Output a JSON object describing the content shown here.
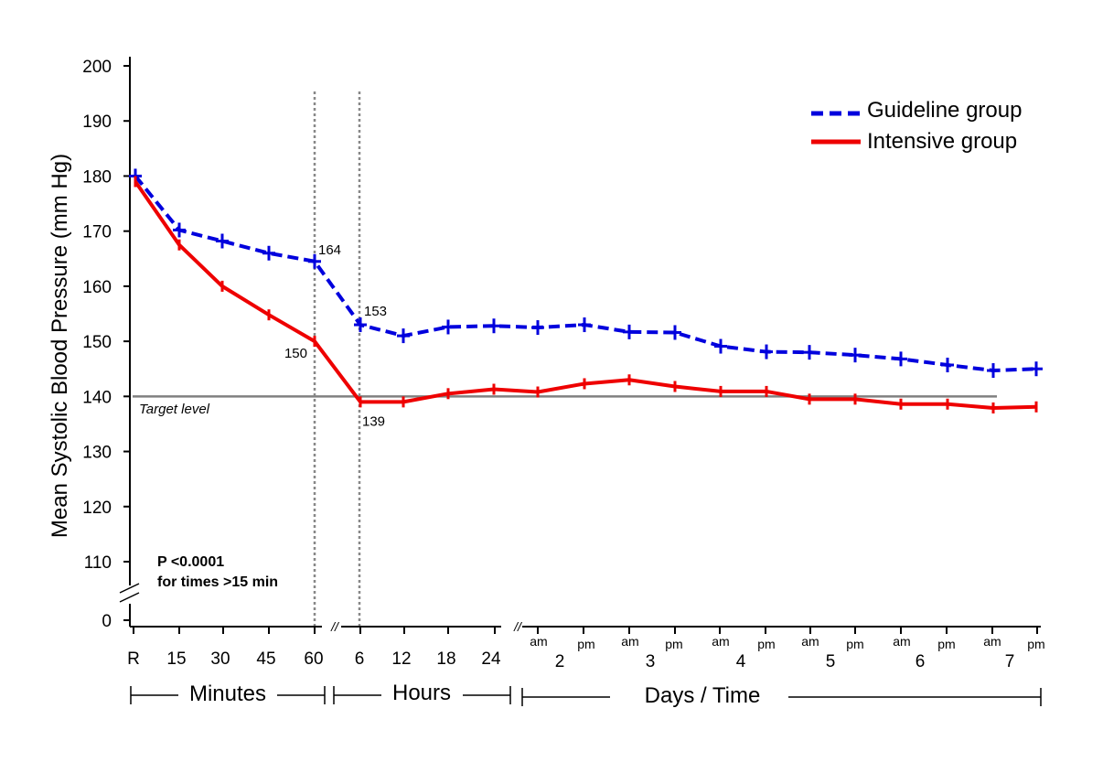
{
  "chart_data": {
    "type": "line",
    "title": "",
    "ylabel": "Mean Systolic Blood Pressure (mm Hg)",
    "ylim": [
      110,
      200
    ],
    "y_ticks": [
      0,
      110,
      120,
      130,
      140,
      150,
      160,
      170,
      180,
      190,
      200
    ],
    "y_axis_break": true,
    "x_tick_labels": [
      "R",
      "15",
      "30",
      "45",
      "60",
      "6",
      "12",
      "18",
      "24",
      "2",
      "3",
      "4",
      "5",
      "6",
      "7"
    ],
    "ampm_labels": [
      "am",
      "pm",
      "am",
      "pm",
      "am",
      "pm",
      "am",
      "pm",
      "am",
      "pm",
      "am",
      "pm"
    ],
    "x_groups": [
      "Minutes",
      "Hours",
      "Days / Time"
    ],
    "x_axis_break_marker": "//",
    "categories": [
      "R",
      "15",
      "30",
      "45",
      "60",
      "6",
      "12",
      "18",
      "24",
      "Day 2 am",
      "Day 2 pm",
      "Day 3 am",
      "Day 3 pm",
      "Day 4 am",
      "Day 4 pm",
      "Day 5 am",
      "Day 5 pm",
      "Day 6 am",
      "Day 6 pm",
      "Day 7 am",
      "Day 7 pm"
    ],
    "series": [
      {
        "name": "Guideline group",
        "color": "#0000dd",
        "style": "dashed",
        "values": [
          180,
          170.2,
          168.2,
          166,
          164.5,
          153,
          151,
          152.6,
          152.8,
          152.5,
          153,
          151.7,
          151.6,
          149.1,
          148.1,
          148,
          147.5,
          146.8,
          145.7,
          144.7,
          145
        ]
      },
      {
        "name": "Intensive group",
        "color": "#ee0000",
        "style": "solid",
        "values": [
          179,
          167.5,
          160,
          154.8,
          150,
          139,
          139,
          140.5,
          141.3,
          140.8,
          142.3,
          143,
          141.8,
          140.9,
          140.9,
          139.5,
          139.5,
          138.6,
          138.6,
          137.9,
          138.1
        ]
      }
    ],
    "target_level": {
      "value": 140,
      "label": "Target level",
      "color": "#808080"
    },
    "point_labels": [
      {
        "series": 0,
        "index": 4,
        "text": "164"
      },
      {
        "series": 0,
        "index": 5,
        "text": "153"
      },
      {
        "series": 1,
        "index": 4,
        "text": "150"
      },
      {
        "series": 1,
        "index": 5,
        "text": "139"
      }
    ],
    "annotation": [
      "P <0.0001",
      "for times >15 min"
    ],
    "legend": {
      "position": "top-right",
      "entries": [
        "Guideline group",
        "Intensive group"
      ]
    },
    "grid": false
  }
}
